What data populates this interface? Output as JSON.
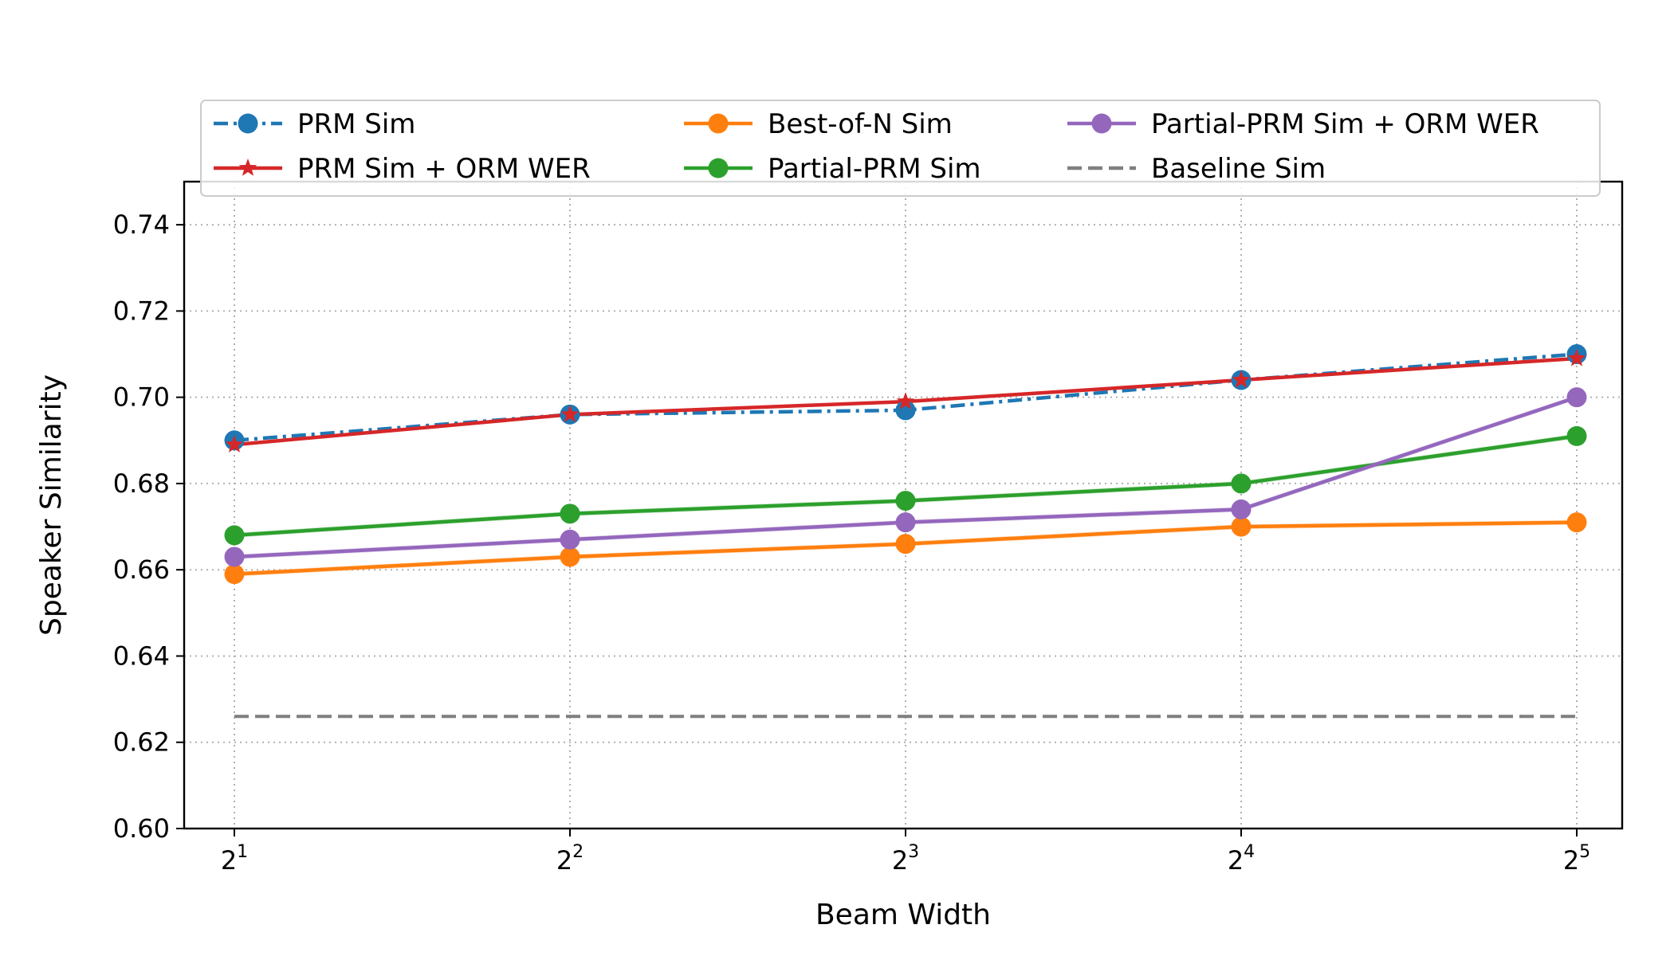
{
  "chart_data": {
    "type": "line",
    "title": "",
    "xlabel": "Beam Width",
    "ylabel": "Speaker Similarity",
    "x_tick_base": "2",
    "x_tick_exponents": [
      "1",
      "2",
      "3",
      "4",
      "5"
    ],
    "x": [
      2,
      4,
      8,
      16,
      32
    ],
    "ylim": [
      0.6,
      0.75
    ],
    "yticks": [
      0.6,
      0.62,
      0.64,
      0.66,
      0.68,
      0.7,
      0.72,
      0.74
    ],
    "ytick_labels": [
      "0.60",
      "0.62",
      "0.64",
      "0.66",
      "0.68",
      "0.70",
      "0.72",
      "0.74"
    ],
    "grid": true,
    "legend_position": "top",
    "series": [
      {
        "name": "PRM Sim",
        "color": "#1f77b4",
        "style": "dashdot",
        "marker": "circle",
        "values": [
          0.69,
          0.696,
          0.697,
          0.704,
          0.71
        ]
      },
      {
        "name": "PRM Sim + ORM WER",
        "color": "#d62728",
        "style": "solid",
        "marker": "star",
        "values": [
          0.689,
          0.696,
          0.699,
          0.704,
          0.709
        ]
      },
      {
        "name": "Best-of-N Sim",
        "color": "#ff7f0e",
        "style": "solid",
        "marker": "circle",
        "band": true,
        "values": [
          0.659,
          0.663,
          0.666,
          0.67,
          0.671
        ]
      },
      {
        "name": "Partial-PRM Sim",
        "color": "#2ca02c",
        "style": "solid",
        "marker": "circle",
        "band": true,
        "values": [
          0.668,
          0.673,
          0.676,
          0.68,
          0.691
        ]
      },
      {
        "name": "Partial-PRM Sim + ORM WER",
        "color": "#9467bd",
        "style": "solid",
        "marker": "circle",
        "band": true,
        "values": [
          0.663,
          0.667,
          0.671,
          0.674,
          0.7
        ]
      },
      {
        "name": "Baseline Sim",
        "color": "#7f7f7f",
        "style": "dashed",
        "marker": "none",
        "values": [
          0.626,
          0.626,
          0.626,
          0.626,
          0.626
        ]
      }
    ]
  }
}
